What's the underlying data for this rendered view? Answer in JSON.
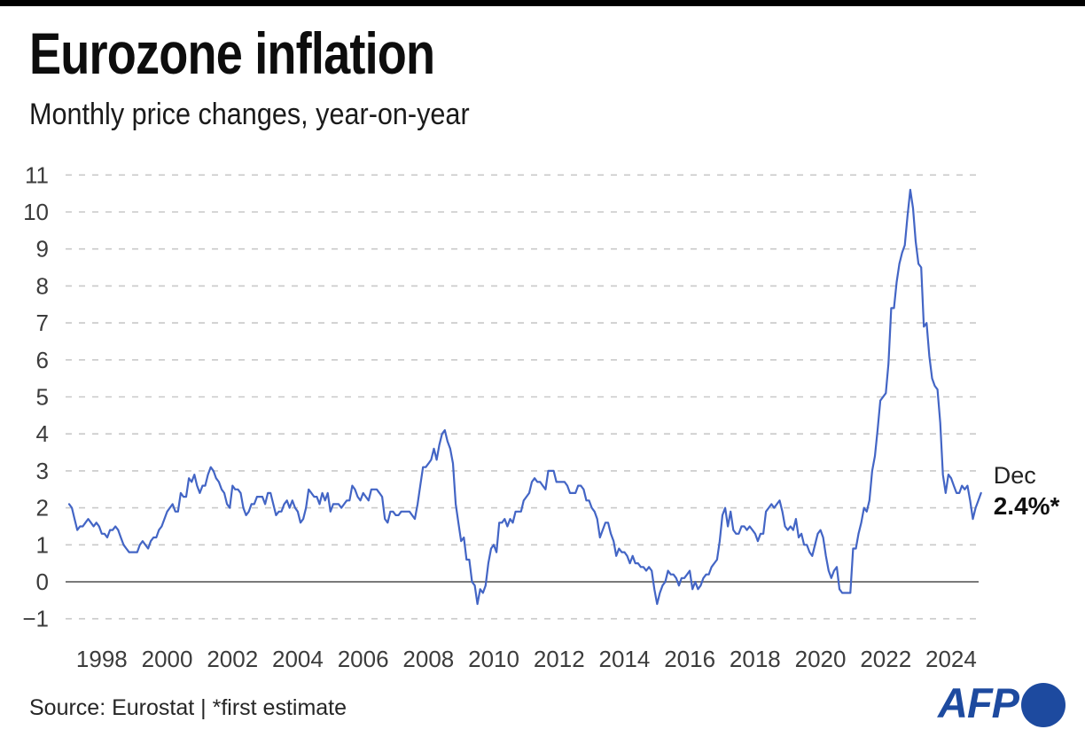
{
  "page": {
    "title": "Eurozone inflation",
    "subtitle": "Monthly price changes, year-on-year",
    "source_line": "Source: Eurostat | *first estimate",
    "logo_text": "AFP"
  },
  "colors": {
    "top_bar": "#000000",
    "line": "#4365c5",
    "zero_line": "#7a7a7a",
    "gridline": "#c9c9c9",
    "tick_label": "#3c3c3c",
    "annotation_label": "#222222",
    "annotation_value": "#111111",
    "afp_blue": "#1d4a9f"
  },
  "chart_data": {
    "type": "line",
    "title": "Eurozone inflation",
    "subtitle": "Monthly price changes, year-on-year",
    "xlabel": "",
    "ylabel": "",
    "grid": "horizontal-dashed",
    "legend": "none",
    "ylim": [
      -1,
      11
    ],
    "y_ticks": [
      -1,
      0,
      1,
      2,
      3,
      4,
      5,
      6,
      7,
      8,
      9,
      10,
      11
    ],
    "x_tick_years": [
      1998,
      2000,
      2002,
      2004,
      2006,
      2008,
      2010,
      2012,
      2014,
      2016,
      2018,
      2020,
      2022,
      2024
    ],
    "zero_baseline_solid": true,
    "annotation": {
      "label": "Dec",
      "value": "2.4%*",
      "point": {
        "year": 2024,
        "month": 12,
        "y": 2.4
      }
    },
    "series": [
      {
        "name": "Eurozone inflation, % year-on-year",
        "frequency": "monthly",
        "start_year": 1997,
        "start_month": 1,
        "values": [
          2.1,
          2.0,
          1.7,
          1.4,
          1.5,
          1.5,
          1.6,
          1.7,
          1.6,
          1.5,
          1.6,
          1.5,
          1.3,
          1.3,
          1.2,
          1.4,
          1.4,
          1.5,
          1.4,
          1.2,
          1.0,
          0.9,
          0.8,
          0.8,
          0.8,
          0.8,
          1.0,
          1.1,
          1.0,
          0.9,
          1.1,
          1.2,
          1.2,
          1.4,
          1.5,
          1.7,
          1.9,
          2.0,
          2.1,
          1.9,
          1.9,
          2.4,
          2.3,
          2.3,
          2.8,
          2.7,
          2.9,
          2.6,
          2.4,
          2.6,
          2.6,
          2.9,
          3.1,
          3.0,
          2.8,
          2.7,
          2.5,
          2.4,
          2.1,
          2.0,
          2.6,
          2.5,
          2.5,
          2.4,
          2.0,
          1.8,
          1.9,
          2.1,
          2.1,
          2.3,
          2.3,
          2.3,
          2.1,
          2.4,
          2.4,
          2.1,
          1.8,
          1.9,
          1.9,
          2.1,
          2.2,
          2.0,
          2.2,
          2.0,
          1.9,
          1.6,
          1.7,
          2.0,
          2.5,
          2.4,
          2.3,
          2.3,
          2.1,
          2.4,
          2.2,
          2.4,
          1.9,
          2.1,
          2.1,
          2.1,
          2.0,
          2.1,
          2.2,
          2.2,
          2.6,
          2.5,
          2.3,
          2.2,
          2.4,
          2.3,
          2.2,
          2.5,
          2.5,
          2.5,
          2.4,
          2.3,
          1.7,
          1.6,
          1.9,
          1.9,
          1.8,
          1.8,
          1.9,
          1.9,
          1.9,
          1.9,
          1.8,
          1.7,
          2.1,
          2.6,
          3.1,
          3.1,
          3.2,
          3.3,
          3.6,
          3.3,
          3.7,
          4.0,
          4.1,
          3.8,
          3.6,
          3.2,
          2.1,
          1.6,
          1.1,
          1.2,
          0.6,
          0.6,
          0.0,
          -0.1,
          -0.6,
          -0.2,
          -0.3,
          -0.1,
          0.5,
          0.9,
          1.0,
          0.8,
          1.6,
          1.6,
          1.7,
          1.5,
          1.7,
          1.6,
          1.9,
          1.9,
          1.9,
          2.2,
          2.3,
          2.4,
          2.7,
          2.8,
          2.7,
          2.7,
          2.6,
          2.5,
          3.0,
          3.0,
          3.0,
          2.7,
          2.7,
          2.7,
          2.7,
          2.6,
          2.4,
          2.4,
          2.4,
          2.6,
          2.6,
          2.5,
          2.2,
          2.2,
          2.0,
          1.9,
          1.7,
          1.2,
          1.4,
          1.6,
          1.6,
          1.3,
          1.1,
          0.7,
          0.9,
          0.8,
          0.8,
          0.7,
          0.5,
          0.7,
          0.5,
          0.5,
          0.4,
          0.4,
          0.3,
          0.4,
          0.3,
          -0.2,
          -0.6,
          -0.3,
          -0.1,
          0.0,
          0.3,
          0.2,
          0.2,
          0.1,
          -0.1,
          0.1,
          0.1,
          0.2,
          0.3,
          -0.2,
          0.0,
          -0.2,
          -0.1,
          0.1,
          0.2,
          0.2,
          0.4,
          0.5,
          0.6,
          1.1,
          1.8,
          2.0,
          1.5,
          1.9,
          1.4,
          1.3,
          1.3,
          1.5,
          1.5,
          1.4,
          1.5,
          1.4,
          1.3,
          1.1,
          1.3,
          1.3,
          1.9,
          2.0,
          2.1,
          2.0,
          2.1,
          2.2,
          1.9,
          1.5,
          1.4,
          1.5,
          1.4,
          1.7,
          1.2,
          1.3,
          1.0,
          1.0,
          0.8,
          0.7,
          1.0,
          1.3,
          1.4,
          1.2,
          0.7,
          0.3,
          0.1,
          0.3,
          0.4,
          -0.2,
          -0.3,
          -0.3,
          -0.3,
          -0.3,
          0.9,
          0.9,
          1.3,
          1.6,
          2.0,
          1.9,
          2.2,
          3.0,
          3.4,
          4.1,
          4.9,
          5.0,
          5.1,
          5.9,
          7.4,
          7.4,
          8.1,
          8.6,
          8.9,
          9.1,
          9.9,
          10.6,
          10.1,
          9.2,
          8.6,
          8.5,
          6.9,
          7.0,
          6.1,
          5.5,
          5.3,
          5.2,
          4.3,
          2.9,
          2.4,
          2.9,
          2.8,
          2.6,
          2.4,
          2.4,
          2.6,
          2.5,
          2.6,
          2.2,
          1.7,
          2.0,
          2.2,
          2.4
        ]
      }
    ]
  }
}
